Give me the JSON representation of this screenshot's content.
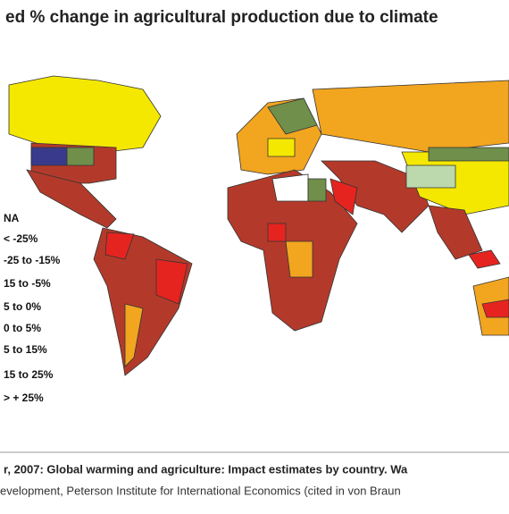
{
  "header": {
    "title": "ed % change in agricultural production due to climate"
  },
  "legend": {
    "items": [
      "NA",
      "< -25%",
      "-25 to -15%",
      "15 to -5%",
      "5 to 0%",
      "0 to 5%",
      "5 to 15%",
      "15 to 25%",
      "> + 25%"
    ]
  },
  "footer": {
    "line1": "r, 2007: Global warming and agriculture: Impact estimates by country. Wa",
    "line2": "evelopment, Peterson Institute for International Economics (cited in von Braun"
  }
}
